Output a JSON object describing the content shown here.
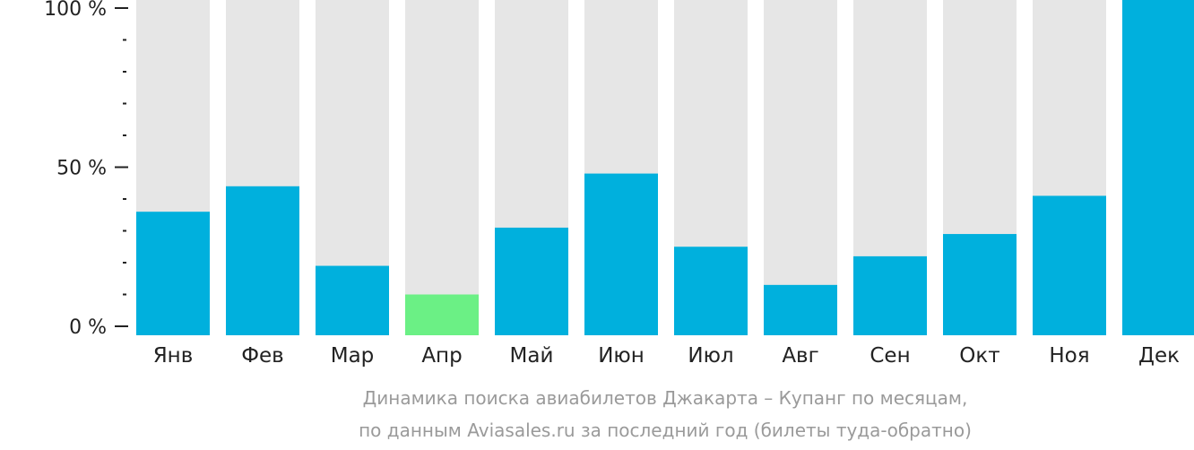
{
  "colors": {
    "bar": "#00b0dd",
    "highlight": "#6bf085",
    "track": "#e6e6e6",
    "axis": "#222222",
    "caption": "#9a9a9a"
  },
  "caption": {
    "line1": "Динамика поиска авиабилетов Джакарта – Купанг по месяцам,",
    "line2": "по данным Aviasales.ru за последний год (билеты туда-обратно)"
  },
  "chart_data": {
    "type": "bar",
    "categories": [
      "Янв",
      "Фев",
      "Мар",
      "Апр",
      "Май",
      "Июн",
      "Июл",
      "Авг",
      "Сен",
      "Окт",
      "Ноя",
      "Дек"
    ],
    "values": [
      36,
      44,
      19,
      10,
      31,
      48,
      25,
      13,
      22,
      29,
      41,
      103
    ],
    "highlight_index": 3,
    "ylim": [
      0,
      100
    ],
    "yticks": [
      {
        "value": 0,
        "label": "0 %"
      },
      {
        "value": 50,
        "label": "50 %"
      },
      {
        "value": 100,
        "label": "100 %"
      }
    ],
    "minor_tick_step": 10,
    "grid": false,
    "legend": "none",
    "title": "",
    "xlabel": "",
    "ylabel": ""
  }
}
